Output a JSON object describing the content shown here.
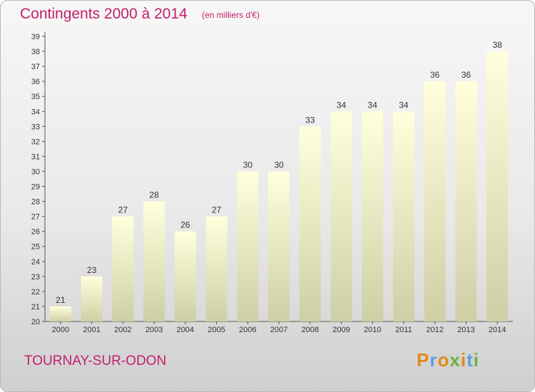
{
  "header": {
    "title": "Contingents 2000 à 2014",
    "subtitle": "(en milliers d'€)"
  },
  "footer": {
    "location": "TOURNAY-SUR-ODON",
    "brand": "Proxiti"
  },
  "colors": {
    "title": "#c2206a",
    "bar_top": "#ffffdc",
    "bar_bottom": "#cfcfa6",
    "brand_letters": [
      "#e08a1e",
      "#5f9fd6",
      "#e08a1e",
      "#6db33f",
      "#e08a1e",
      "#5f9fd6",
      "#6db33f"
    ]
  },
  "chart_data": {
    "type": "bar",
    "title": "Contingents 2000 à 2014",
    "subtitle": "(en milliers d'€)",
    "categories": [
      "2000",
      "2001",
      "2002",
      "2003",
      "2004",
      "2005",
      "2006",
      "2007",
      "2008",
      "2009",
      "2010",
      "2011",
      "2012",
      "2013",
      "2014"
    ],
    "values": [
      21,
      23,
      27,
      28,
      26,
      27,
      30,
      30,
      33,
      34,
      34,
      34,
      36,
      36,
      38
    ],
    "ylim": [
      20,
      39
    ],
    "yticks": [
      20,
      21,
      22,
      23,
      24,
      25,
      26,
      27,
      28,
      29,
      30,
      31,
      32,
      33,
      34,
      35,
      36,
      37,
      38,
      39
    ],
    "data_labels": [
      "21",
      "23",
      "27",
      "28",
      "26",
      "27",
      "30",
      "30",
      "33",
      "34",
      "34",
      "34",
      "36",
      "36",
      "38"
    ],
    "grid": false
  }
}
